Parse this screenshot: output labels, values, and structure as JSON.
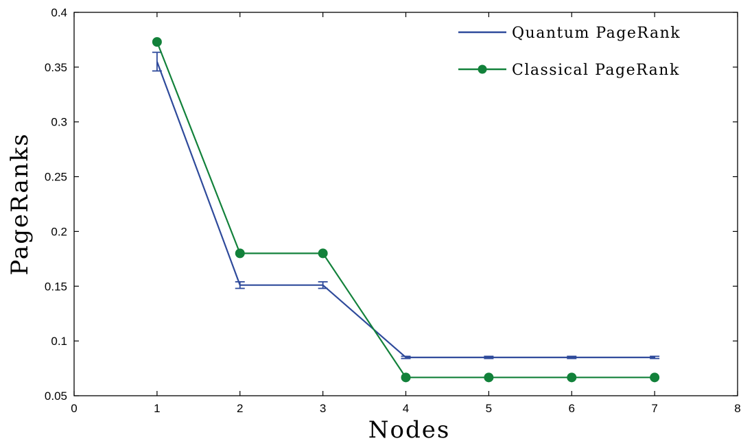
{
  "chart_data": {
    "type": "line",
    "title": "",
    "xlabel": "Nodes",
    "ylabel": "PageRanks",
    "xlim": [
      0,
      8
    ],
    "ylim": [
      0.05,
      0.4
    ],
    "xticks": [
      "0",
      "1",
      "2",
      "3",
      "4",
      "5",
      "6",
      "7",
      "8"
    ],
    "yticks": [
      "0.05",
      "0.1",
      "0.15",
      "0.2",
      "0.25",
      "0.3",
      "0.35",
      "0.4"
    ],
    "grid": false,
    "legend_position": "top-right",
    "series": [
      {
        "name": "Quantum PageRank",
        "color": "#2e4a9b",
        "marker": "none",
        "x": [
          1,
          2,
          3,
          4,
          5,
          6,
          7
        ],
        "y": [
          0.355,
          0.151,
          0.151,
          0.085,
          0.085,
          0.085,
          0.085
        ],
        "error": [
          0.0085,
          0.003,
          0.003,
          0.001,
          0.001,
          0.001,
          0.001
        ]
      },
      {
        "name": "Classical PageRank",
        "color": "#12813a",
        "marker": "circle",
        "x": [
          1,
          2,
          3,
          4,
          5,
          6,
          7
        ],
        "y": [
          0.373,
          0.18,
          0.18,
          0.0667,
          0.0667,
          0.0667,
          0.0667
        ]
      }
    ]
  }
}
